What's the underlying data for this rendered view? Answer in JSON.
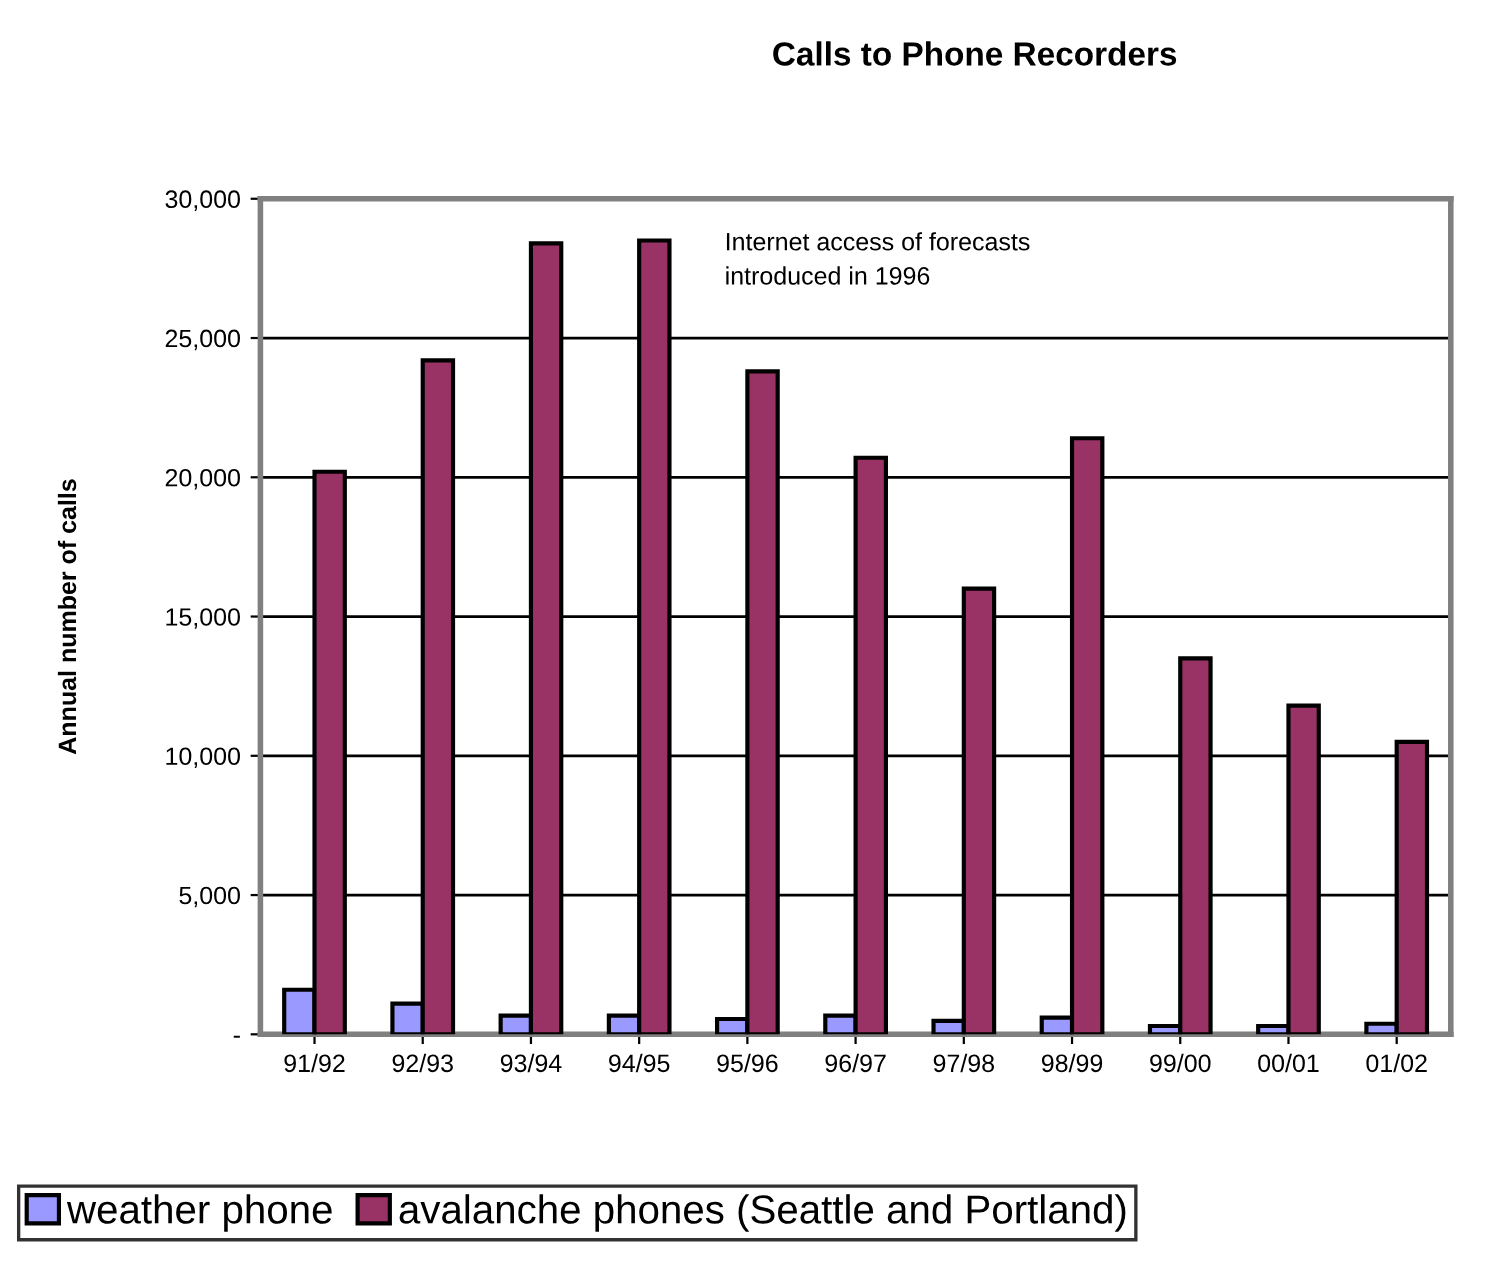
{
  "chart_data": {
    "type": "bar",
    "title": "Calls to Phone Recorders",
    "ylabel": "Annual number of calls",
    "categories": [
      "91/92",
      "92/93",
      "93/94",
      "94/95",
      "95/96",
      "96/97",
      "97/98",
      "98/99",
      "99/00",
      "00/01",
      "01/02"
    ],
    "series": [
      {
        "name": "weather phone",
        "color": "#9999ff",
        "values": [
          1600,
          1100,
          670,
          670,
          550,
          670,
          480,
          600,
          300,
          300,
          380
        ]
      },
      {
        "name": "avalanche phones (Seattle and Portland)",
        "color": "#993366",
        "values": [
          20200,
          24200,
          28400,
          28500,
          23800,
          20700,
          16000,
          21400,
          13500,
          11800,
          10500
        ]
      }
    ],
    "ylim": [
      0,
      30000
    ],
    "yticks": [
      {
        "value": 0,
        "label": "-"
      },
      {
        "value": 5000,
        "label": "5,000"
      },
      {
        "value": 10000,
        "label": "10,000"
      },
      {
        "value": 15000,
        "label": "15,000"
      },
      {
        "value": 20000,
        "label": "20,000"
      },
      {
        "value": 25000,
        "label": "25,000"
      },
      {
        "value": 30000,
        "label": "30,000"
      }
    ],
    "grid": "y",
    "legend": "bottom",
    "annotations": [
      "Internet access of forecasts\nintroduced in 1996"
    ]
  }
}
